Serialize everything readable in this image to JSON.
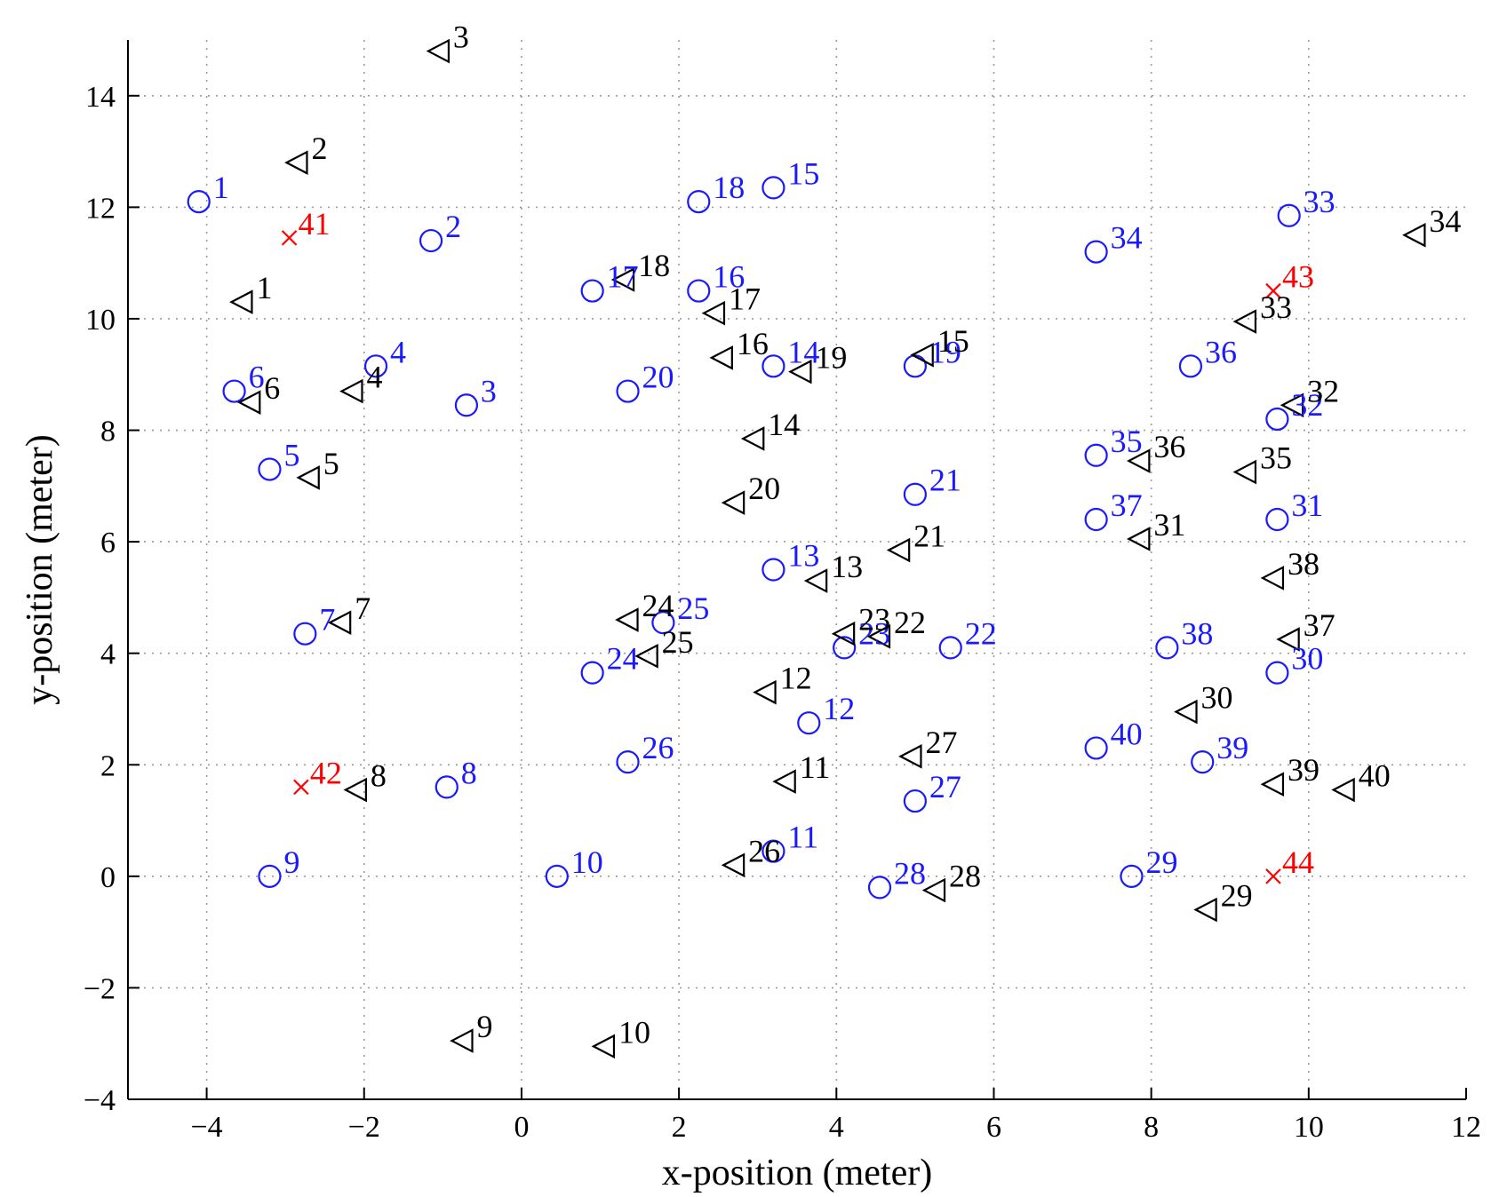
{
  "chart_data": {
    "type": "scatter",
    "title": "",
    "xlabel": "x-position (meter)",
    "ylabel": "y-position (meter)",
    "xlim": [
      -5,
      12
    ],
    "ylim": [
      -4,
      15
    ],
    "xticks": [
      -4,
      -2,
      0,
      2,
      4,
      6,
      8,
      10,
      12
    ],
    "yticks": [
      -4,
      -2,
      0,
      2,
      4,
      6,
      8,
      10,
      12,
      14
    ],
    "grid": true,
    "legend": "none",
    "colors": {
      "circles": "#1a1aff",
      "triangles": "#000000",
      "crosses": "#ff0000"
    },
    "series": [
      {
        "marker": "circle",
        "color": "#1a1aff",
        "points": [
          {
            "label": "1",
            "x": -4.1,
            "y": 12.1
          },
          {
            "label": "2",
            "x": -1.15,
            "y": 11.4
          },
          {
            "label": "3",
            "x": -0.7,
            "y": 8.45
          },
          {
            "label": "4",
            "x": -1.85,
            "y": 9.15
          },
          {
            "label": "5",
            "x": -3.2,
            "y": 7.3
          },
          {
            "label": "6",
            "x": -3.65,
            "y": 8.7
          },
          {
            "label": "7",
            "x": -2.75,
            "y": 4.35
          },
          {
            "label": "8",
            "x": -0.95,
            "y": 1.6
          },
          {
            "label": "9",
            "x": -3.2,
            "y": 0.0
          },
          {
            "label": "10",
            "x": 0.45,
            "y": 0.0
          },
          {
            "label": "11",
            "x": 3.2,
            "y": 0.45
          },
          {
            "label": "12",
            "x": 3.65,
            "y": 2.75
          },
          {
            "label": "13",
            "x": 3.2,
            "y": 5.5
          },
          {
            "label": "14",
            "x": 3.2,
            "y": 9.15
          },
          {
            "label": "15",
            "x": 3.2,
            "y": 12.35
          },
          {
            "label": "16",
            "x": 2.25,
            "y": 10.5
          },
          {
            "label": "17",
            "x": 0.9,
            "y": 10.5
          },
          {
            "label": "18",
            "x": 2.25,
            "y": 12.1
          },
          {
            "label": "19",
            "x": 5.0,
            "y": 9.15
          },
          {
            "label": "20",
            "x": 1.35,
            "y": 8.7
          },
          {
            "label": "21",
            "x": 5.0,
            "y": 6.85
          },
          {
            "label": "22",
            "x": 5.45,
            "y": 4.1
          },
          {
            "label": "23",
            "x": 4.1,
            "y": 4.1
          },
          {
            "label": "24",
            "x": 0.9,
            "y": 3.65
          },
          {
            "label": "25",
            "x": 1.8,
            "y": 4.55
          },
          {
            "label": "26",
            "x": 1.35,
            "y": 2.05
          },
          {
            "label": "27",
            "x": 5.0,
            "y": 1.35
          },
          {
            "label": "28",
            "x": 4.55,
            "y": -0.2
          },
          {
            "label": "29",
            "x": 7.75,
            "y": 0.0
          },
          {
            "label": "30",
            "x": 9.6,
            "y": 3.65
          },
          {
            "label": "31",
            "x": 9.6,
            "y": 6.4
          },
          {
            "label": "32",
            "x": 9.6,
            "y": 8.2
          },
          {
            "label": "33",
            "x": 9.75,
            "y": 11.85
          },
          {
            "label": "34",
            "x": 7.3,
            "y": 11.2
          },
          {
            "label": "35",
            "x": 7.3,
            "y": 7.55
          },
          {
            "label": "36",
            "x": 8.5,
            "y": 9.15
          },
          {
            "label": "37",
            "x": 7.3,
            "y": 6.4
          },
          {
            "label": "38",
            "x": 8.2,
            "y": 4.1
          },
          {
            "label": "39",
            "x": 8.65,
            "y": 2.05
          },
          {
            "label": "40",
            "x": 7.3,
            "y": 2.3
          }
        ]
      },
      {
        "marker": "triangle-left",
        "color": "#000000",
        "points": [
          {
            "label": "1",
            "x": -3.55,
            "y": 10.3
          },
          {
            "label": "2",
            "x": -2.85,
            "y": 12.8
          },
          {
            "label": "3",
            "x": -1.05,
            "y": 14.8
          },
          {
            "label": "4",
            "x": -2.15,
            "y": 8.7
          },
          {
            "label": "5",
            "x": -2.7,
            "y": 7.15
          },
          {
            "label": "6",
            "x": -3.45,
            "y": 8.5
          },
          {
            "label": "7",
            "x": -2.3,
            "y": 4.55
          },
          {
            "label": "8",
            "x": -2.1,
            "y": 1.55
          },
          {
            "label": "9",
            "x": -0.75,
            "y": -2.95
          },
          {
            "label": "10",
            "x": 1.05,
            "y": -3.05
          },
          {
            "label": "11",
            "x": 3.35,
            "y": 1.7
          },
          {
            "label": "12",
            "x": 3.1,
            "y": 3.3
          },
          {
            "label": "13",
            "x": 3.75,
            "y": 5.3
          },
          {
            "label": "14",
            "x": 2.95,
            "y": 7.85
          },
          {
            "label": "15",
            "x": 5.1,
            "y": 9.35
          },
          {
            "label": "16",
            "x": 2.55,
            "y": 9.3
          },
          {
            "label": "17",
            "x": 2.45,
            "y": 10.1
          },
          {
            "label": "18",
            "x": 1.3,
            "y": 10.7
          },
          {
            "label": "19",
            "x": 3.55,
            "y": 9.05
          },
          {
            "label": "20",
            "x": 2.7,
            "y": 6.7
          },
          {
            "label": "21",
            "x": 4.8,
            "y": 5.85
          },
          {
            "label": "22",
            "x": 4.55,
            "y": 4.3
          },
          {
            "label": "23",
            "x": 4.1,
            "y": 4.35
          },
          {
            "label": "24",
            "x": 1.35,
            "y": 4.6
          },
          {
            "label": "25",
            "x": 1.6,
            "y": 3.95
          },
          {
            "label": "26",
            "x": 2.7,
            "y": 0.2
          },
          {
            "label": "27",
            "x": 4.95,
            "y": 2.15
          },
          {
            "label": "28",
            "x": 5.25,
            "y": -0.25
          },
          {
            "label": "29",
            "x": 8.7,
            "y": -0.6
          },
          {
            "label": "30",
            "x": 8.45,
            "y": 2.95
          },
          {
            "label": "31",
            "x": 7.85,
            "y": 6.05
          },
          {
            "label": "32",
            "x": 9.8,
            "y": 8.45
          },
          {
            "label": "33",
            "x": 9.2,
            "y": 9.95
          },
          {
            "label": "34",
            "x": 11.35,
            "y": 11.5
          },
          {
            "label": "35",
            "x": 9.2,
            "y": 7.25
          },
          {
            "label": "36",
            "x": 7.85,
            "y": 7.45
          },
          {
            "label": "37",
            "x": 9.75,
            "y": 4.25
          },
          {
            "label": "38",
            "x": 9.55,
            "y": 5.35
          },
          {
            "label": "39",
            "x": 9.55,
            "y": 1.65
          },
          {
            "label": "40",
            "x": 10.45,
            "y": 1.55
          }
        ]
      },
      {
        "marker": "x",
        "color": "#ff0000",
        "points": [
          {
            "label": "41",
            "x": -2.95,
            "y": 11.45
          },
          {
            "label": "42",
            "x": -2.8,
            "y": 1.6
          },
          {
            "label": "43",
            "x": 9.55,
            "y": 10.5
          },
          {
            "label": "44",
            "x": 9.55,
            "y": 0.0
          }
        ]
      }
    ]
  }
}
